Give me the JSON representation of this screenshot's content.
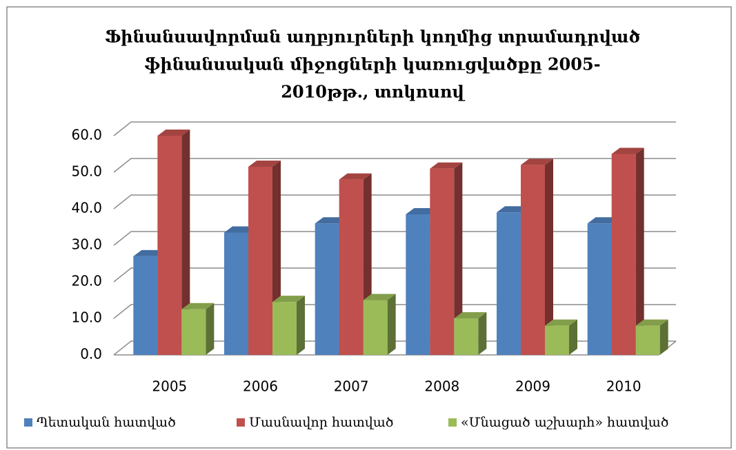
{
  "chart_data": {
    "type": "bar3d",
    "title": [
      "Ֆինանսավորման աղբյուրների կողմից տրամադրված",
      "ֆինանսական միջոցների կառուցվածքը 2005-",
      "2010թթ., տոկոսով"
    ],
    "categories": [
      "2005",
      "2006",
      "2007",
      "2008",
      "2009",
      "2010"
    ],
    "series": [
      {
        "name": "Պետական հատված",
        "color": "#4f81bd",
        "values": [
          27,
          33.5,
          36,
          38.5,
          39,
          36
        ]
      },
      {
        "name": "Մասնավոր հատված",
        "color": "#c0504d",
        "values": [
          60,
          51.5,
          48,
          51,
          52,
          55
        ]
      },
      {
        "name": "«Մնացած աշխարհ» հատված",
        "color": "#9bbb59",
        "values": [
          12.5,
          14.5,
          15,
          10,
          8,
          8
        ]
      }
    ],
    "ylim": [
      0,
      60
    ],
    "yticks": [
      {
        "value": 0,
        "label": "0.0"
      },
      {
        "value": 10,
        "label": "10.0"
      },
      {
        "value": 20,
        "label": "20.0"
      },
      {
        "value": 30,
        "label": "30.0"
      },
      {
        "value": 40,
        "label": "40.0"
      },
      {
        "value": 50,
        "label": "50.0"
      },
      {
        "value": 60,
        "label": "60.0"
      }
    ],
    "grid": true,
    "legend": "bottom"
  }
}
